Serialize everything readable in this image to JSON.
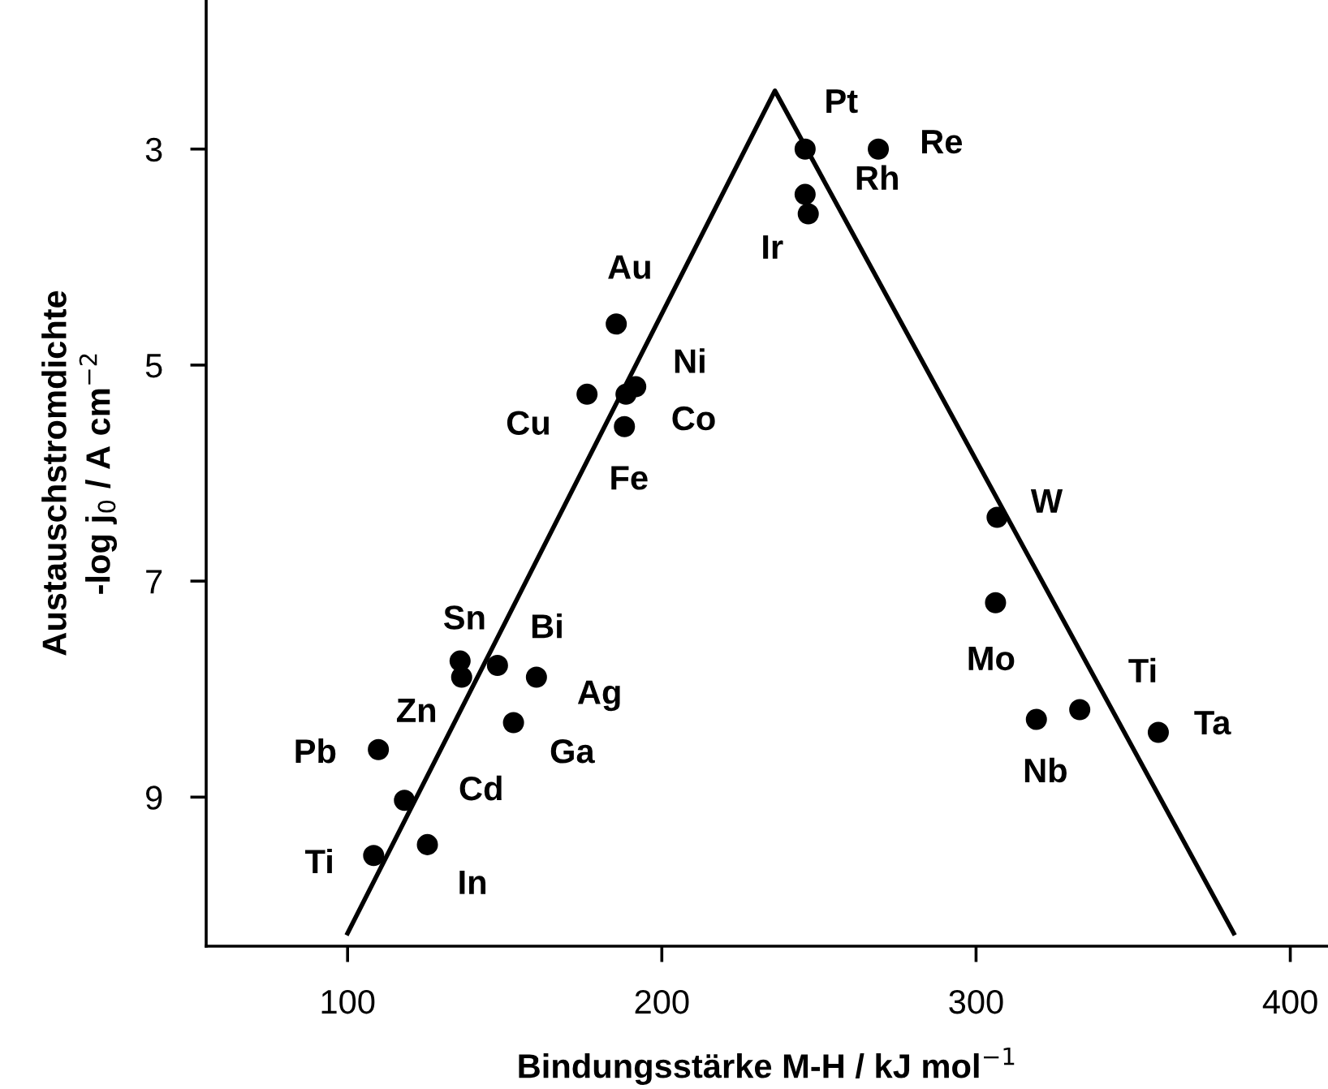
{
  "chart_data": {
    "type": "scatter",
    "xlabel": "Bindungsstärke M-H / kJ mol$^{−1}$",
    "ylabel": "Austauschstromdichte\n-log j$_{0}$ / A cm$^{−2}$",
    "xlim": [
      55,
      412
    ],
    "ylim": [
      10.38,
      1.62
    ],
    "xticks": [
      100,
      200,
      300,
      400
    ],
    "yticks": [
      3,
      5,
      7,
      9
    ],
    "grid": false,
    "marker": "circle",
    "series": [
      {
        "color": "#000000",
        "x": [
          245.6,
          268.9,
          245.6,
          246.6,
          185.5,
          191.7,
          188.6,
          176.2,
          188.1,
          306.7,
          306.2,
          135.8,
          147.7,
          136.3,
          160.1,
          152.8,
          109.8,
          118.1,
          108.3,
          125.4,
          333,
          319.2,
          358
        ],
        "values": [
          3.0,
          3.0,
          3.42,
          3.6,
          4.62,
          5.2,
          5.27,
          5.27,
          5.57,
          6.41,
          7.2,
          7.74,
          7.78,
          7.89,
          7.89,
          8.31,
          8.56,
          9.03,
          9.54,
          9.44,
          8.19,
          8.28,
          8.4
        ]
      },
      {
        "type": "line",
        "color": "#000000",
        "marker": "none",
        "x": [
          100,
          236,
          382
        ],
        "values": [
          10.26,
          2.46,
          10.26
        ]
      }
    ],
    "annotations": [
      {
        "text": "Pt",
        "x": 245.6,
        "y": 3.0
      },
      {
        "text": "Re",
        "x": 268.9,
        "y": 3.0
      },
      {
        "text": "Rh",
        "x": 245.6,
        "y": 3.42
      },
      {
        "text": "Ir",
        "x": 246.6,
        "y": 3.6
      },
      {
        "text": "Au",
        "x": 185.5,
        "y": 4.62
      },
      {
        "text": "Ni",
        "x": 191.7,
        "y": 5.2
      },
      {
        "text": "Co",
        "x": 188.6,
        "y": 5.27
      },
      {
        "text": "Cu",
        "x": 176.2,
        "y": 5.27
      },
      {
        "text": "Fe",
        "x": 188.1,
        "y": 5.57
      },
      {
        "text": "W",
        "x": 306.7,
        "y": 6.41
      },
      {
        "text": "Mo",
        "x": 306.2,
        "y": 7.2
      },
      {
        "text": "Sn",
        "x": 135.8,
        "y": 7.74
      },
      {
        "text": "Bi",
        "x": 147.7,
        "y": 7.78
      },
      {
        "text": "Zn",
        "x": 136.3,
        "y": 7.89
      },
      {
        "text": "Ag",
        "x": 160.1,
        "y": 7.89
      },
      {
        "text": "Ga",
        "x": 152.8,
        "y": 8.31
      },
      {
        "text": "Pb",
        "x": 109.8,
        "y": 8.56
      },
      {
        "text": "Cd",
        "x": 118.1,
        "y": 9.03
      },
      {
        "text": "Ti",
        "x": 108.3,
        "y": 9.54
      },
      {
        "text": "In",
        "x": 125.4,
        "y": 9.44
      },
      {
        "text": "Ti",
        "x": 333,
        "y": 8.19
      },
      {
        "text": "Nb",
        "x": 319.2,
        "y": 8.28
      },
      {
        "text": "Ta",
        "x": 358,
        "y": 8.4
      }
    ]
  }
}
